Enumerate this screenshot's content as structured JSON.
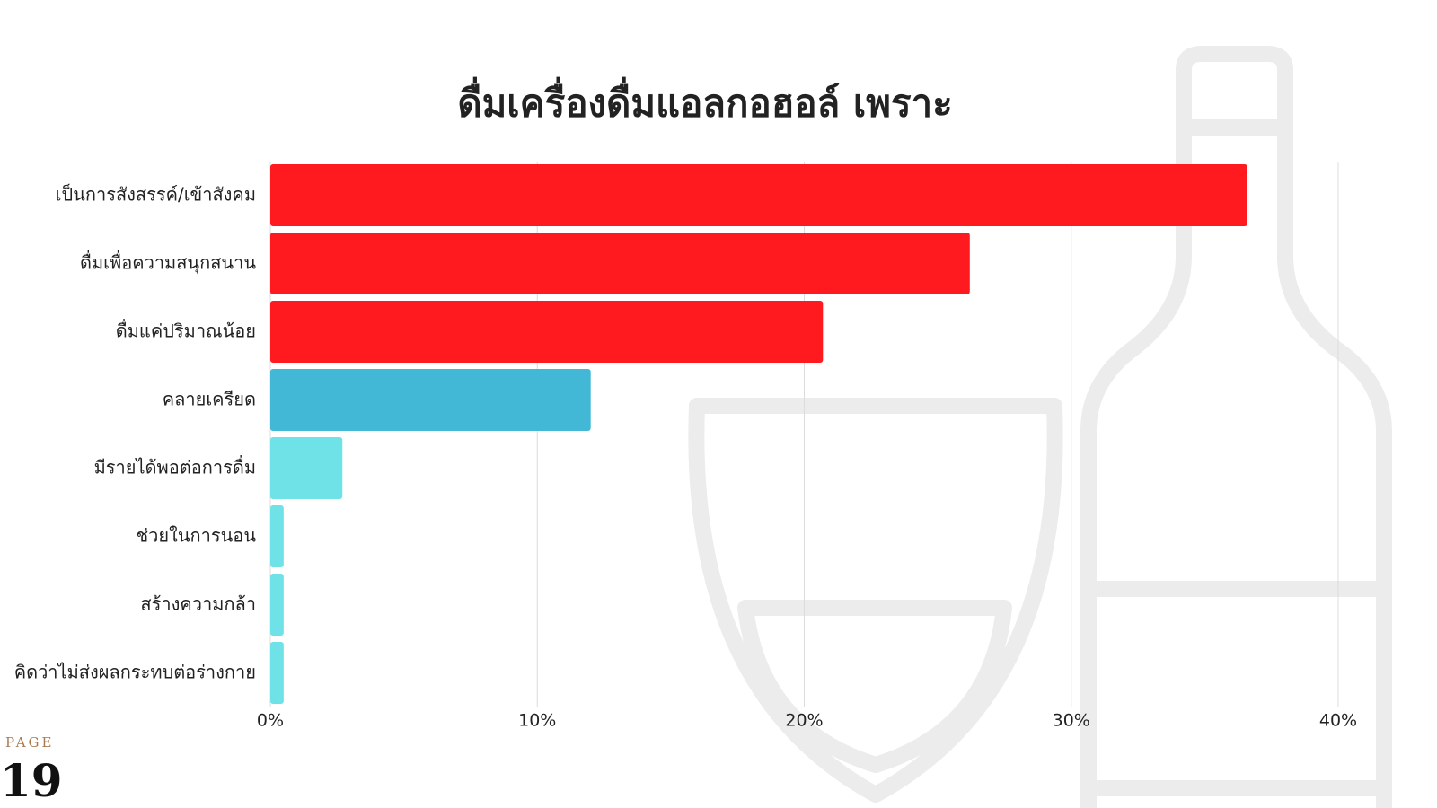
{
  "chart_data": {
    "type": "bar",
    "orientation": "horizontal",
    "title": "ดื่มเครื่องดื่มแอลกอฮอล์ เพราะ",
    "categories": [
      "เป็นการสังสรรค์/เข้าสังคม",
      "ดื่มเพื่อความสนุกสนาน",
      "ดื่มแค่ปริมาณน้อย",
      "คลายเครียด",
      "มีรายได้พอต่อการดื่ม",
      "ช่วยในการนอน",
      "สร้างความกล้า",
      "คิดว่าไม่ส่งผลกระทบต่อร่างกาย"
    ],
    "values": [
      36.6,
      26.2,
      20.7,
      12.0,
      2.7,
      0.5,
      0.5,
      0.5
    ],
    "colors": [
      "#ff1a1f",
      "#ff1a1f",
      "#ff1a1f",
      "#42b8d6",
      "#6fe2e8",
      "#6fe2e8",
      "#6fe2e8",
      "#6fe2e8"
    ],
    "xlim": [
      0,
      40
    ],
    "xticks": [
      {
        "value": 0,
        "label": "0%"
      },
      {
        "value": 10,
        "label": "10%"
      },
      {
        "value": 20,
        "label": "20%"
      },
      {
        "value": 30,
        "label": "30%"
      },
      {
        "value": 40,
        "label": "40%"
      }
    ],
    "grid": true
  },
  "page": {
    "label": "PAGE",
    "number": "19"
  }
}
